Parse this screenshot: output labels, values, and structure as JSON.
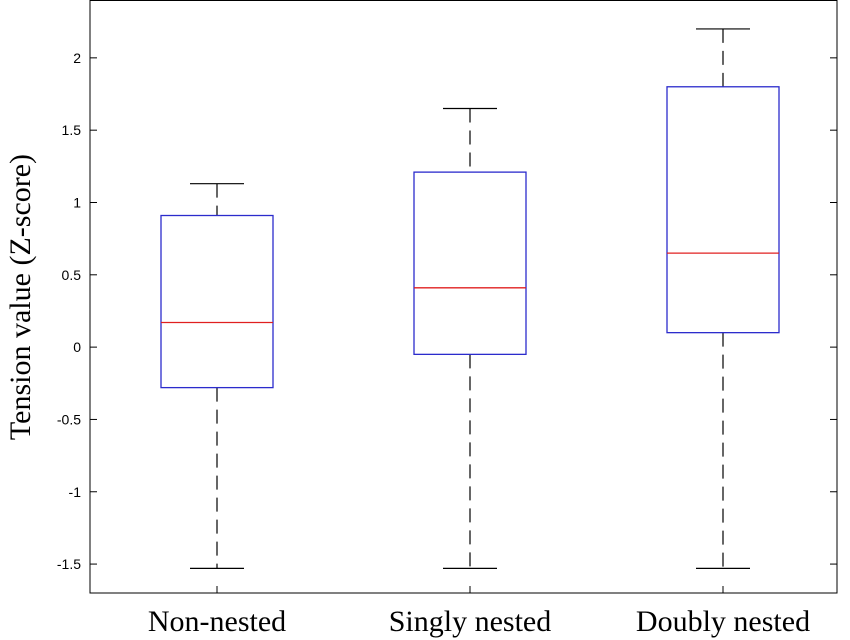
{
  "chart_data": {
    "type": "boxplot",
    "title": "",
    "xlabel": "",
    "ylabel": "Tension value (Z-score)",
    "categories": [
      "Non-nested",
      "Singly nested",
      "Doubly nested"
    ],
    "boxes": [
      {
        "category": "Non-nested",
        "whisker_low": -1.53,
        "q1": -0.28,
        "median": 0.17,
        "q3": 0.91,
        "whisker_high": 1.13
      },
      {
        "category": "Singly nested",
        "whisker_low": -1.53,
        "q1": -0.05,
        "median": 0.41,
        "q3": 1.21,
        "whisker_high": 1.65
      },
      {
        "category": "Doubly nested",
        "whisker_low": -1.53,
        "q1": 0.1,
        "median": 0.65,
        "q3": 1.8,
        "whisker_high": 2.2
      }
    ],
    "ylim": [
      -1.7,
      2.4
    ],
    "yticks": [
      -1.5,
      -1,
      -0.5,
      0,
      0.5,
      1,
      1.5,
      2
    ],
    "ytick_labels": [
      "-1.5",
      "-1",
      "-0.5",
      "0",
      "0.5",
      "1",
      "1.5",
      "2"
    ],
    "grid": false,
    "legend": "none",
    "colors": {
      "box": "#2b2bcc",
      "median": "#e02020",
      "whisker": "#000000",
      "axis": "#000000"
    }
  }
}
